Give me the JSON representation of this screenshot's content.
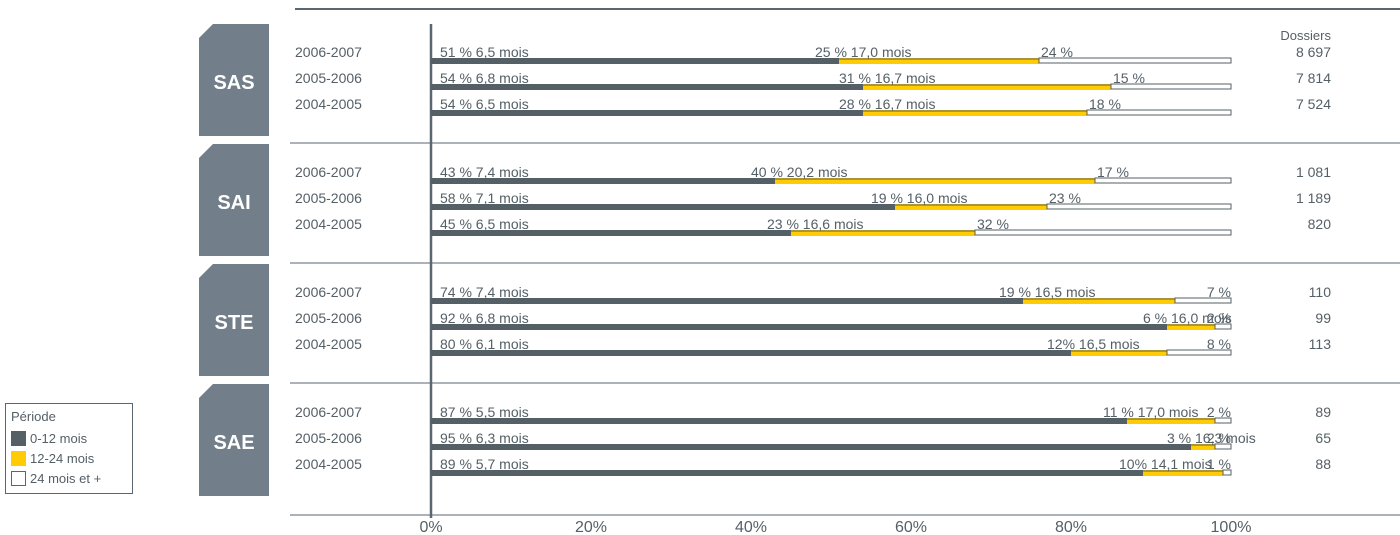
{
  "chart_data": {
    "type": "bar",
    "orientation": "horizontal",
    "stacked": true,
    "percent_axis": [
      0,
      100
    ],
    "x_ticks": [
      "0%",
      "20%",
      "40%",
      "60%",
      "80%",
      "100%"
    ],
    "count_header": "Dossiers",
    "legend": {
      "title": "Période",
      "items": [
        {
          "label": "0-12 mois",
          "color": "#545f66"
        },
        {
          "label": "12-24 mois",
          "color": "#ffcb05"
        },
        {
          "label": "24 mois et +",
          "color": "#ffffff"
        }
      ]
    },
    "groups": [
      {
        "name": "SAS",
        "rows": [
          {
            "period": "2006-2007",
            "p1": 51,
            "l1": "51 %  6,5 mois",
            "p2": 25,
            "l2": "25 %  17,0 mois",
            "p3": 24,
            "l3": "24 %",
            "count": "8 697"
          },
          {
            "period": "2005-2006",
            "p1": 54,
            "l1": "54 %  6,8 mois",
            "p2": 31,
            "l2": "31 %  16,7 mois",
            "p3": 15,
            "l3": "15 %",
            "count": "7 814"
          },
          {
            "period": "2004-2005",
            "p1": 54,
            "l1": "54 %  6,5 mois",
            "p2": 28,
            "l2": "28 %  16,7 mois",
            "p3": 18,
            "l3": "18 %",
            "count": "7 524"
          }
        ]
      },
      {
        "name": "SAI",
        "rows": [
          {
            "period": "2006-2007",
            "p1": 43,
            "l1": "43 %  7,4 mois",
            "p2": 40,
            "l2": "40 %  20,2 mois",
            "p3": 17,
            "l3": "17 %",
            "count": "1 081"
          },
          {
            "period": "2005-2006",
            "p1": 58,
            "l1": "58 %  7,1 mois",
            "p2": 19,
            "l2": "19 %  16,0 mois",
            "p3": 23,
            "l3": "23 %",
            "count": "1 189"
          },
          {
            "period": "2004-2005",
            "p1": 45,
            "l1": "45 %  6,5 mois",
            "p2": 23,
            "l2": "23 %  16,6 mois",
            "p3": 32,
            "l3": "32 %",
            "count": "820"
          }
        ]
      },
      {
        "name": "STE",
        "rows": [
          {
            "period": "2006-2007",
            "p1": 74,
            "l1": "74 %  7,4 mois",
            "p2": 19,
            "l2": "19 %  16,5 mois",
            "p3": 7,
            "l3": "7 %",
            "count": "110"
          },
          {
            "period": "2005-2006",
            "p1": 92,
            "l1": "92 %  6,8 mois",
            "p2": 6,
            "l2": "6 %  16,0 mois",
            "p3": 2,
            "l3": "2 %",
            "count": "99"
          },
          {
            "period": "2004-2005",
            "p1": 80,
            "l1": "80 %  6,1 mois",
            "p2": 12,
            "l2": "12%  16,5 mois",
            "p3": 8,
            "l3": "8 %",
            "count": "113"
          }
        ]
      },
      {
        "name": "SAE",
        "rows": [
          {
            "period": "2006-2007",
            "p1": 87,
            "l1": "87 %  5,5 mois",
            "p2": 11,
            "l2": "11 %  17,0 mois",
            "p3": 2,
            "l3": "2 %",
            "count": "89"
          },
          {
            "period": "2005-2006",
            "p1": 95,
            "l1": "95 %  6,3 mois",
            "p2": 3,
            "l2": "3 %  16,3 mois",
            "p3": 2,
            "l3": "2 %",
            "count": "65"
          },
          {
            "period": "2004-2005",
            "p1": 89,
            "l1": "89 %  5,7 mois",
            "p2": 10,
            "l2": "10%  14,1 mois",
            "p3": 1,
            "l3": "1 %",
            "count": "88"
          }
        ]
      }
    ]
  }
}
